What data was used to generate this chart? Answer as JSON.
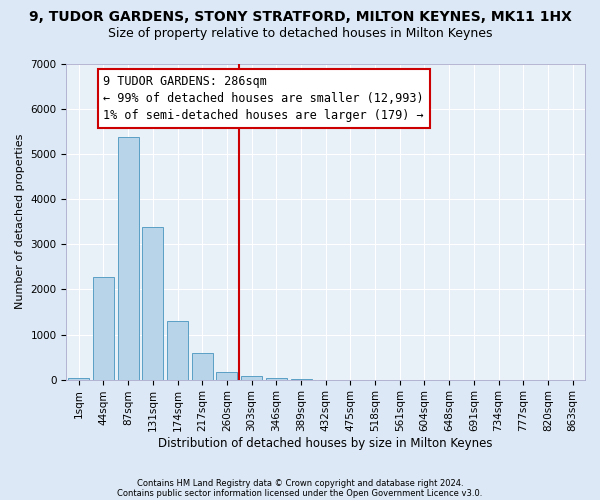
{
  "title": "9, TUDOR GARDENS, STONY STRATFORD, MILTON KEYNES, MK11 1HX",
  "subtitle": "Size of property relative to detached houses in Milton Keynes",
  "xlabel": "Distribution of detached houses by size in Milton Keynes",
  "ylabel": "Number of detached properties",
  "footnote1": "Contains HM Land Registry data © Crown copyright and database right 2024.",
  "footnote2": "Contains public sector information licensed under the Open Government Licence v3.0.",
  "bar_labels": [
    "1sqm",
    "44sqm",
    "87sqm",
    "131sqm",
    "174sqm",
    "217sqm",
    "260sqm",
    "303sqm",
    "346sqm",
    "389sqm",
    "432sqm",
    "475sqm",
    "518sqm",
    "561sqm",
    "604sqm",
    "648sqm",
    "691sqm",
    "734sqm",
    "777sqm",
    "820sqm",
    "863sqm"
  ],
  "bar_values": [
    30,
    2280,
    5380,
    3380,
    1300,
    580,
    170,
    80,
    30,
    10,
    0,
    0,
    0,
    0,
    0,
    0,
    0,
    0,
    0,
    0,
    0
  ],
  "bar_color": "#b8d4e8",
  "bar_edge_color": "#5a9fc5",
  "vline_color": "#cc0000",
  "annotation_text": "9 TUDOR GARDENS: 286sqm\n← 99% of detached houses are smaller (12,993)\n1% of semi-detached houses are larger (179) →",
  "annotation_box_color": "#ffffff",
  "annotation_box_edge": "#cc0000",
  "ylim": [
    0,
    7000
  ],
  "yticks": [
    0,
    1000,
    2000,
    3000,
    4000,
    5000,
    6000,
    7000
  ],
  "bg_color": "#dce8f5",
  "plot_bg_color": "#e8f0f8",
  "title_fontsize": 10,
  "subtitle_fontsize": 9,
  "annotation_fontsize": 8.5,
  "axis_label_fontsize": 8.5,
  "tick_fontsize": 7.5,
  "ylabel_fontsize": 8
}
